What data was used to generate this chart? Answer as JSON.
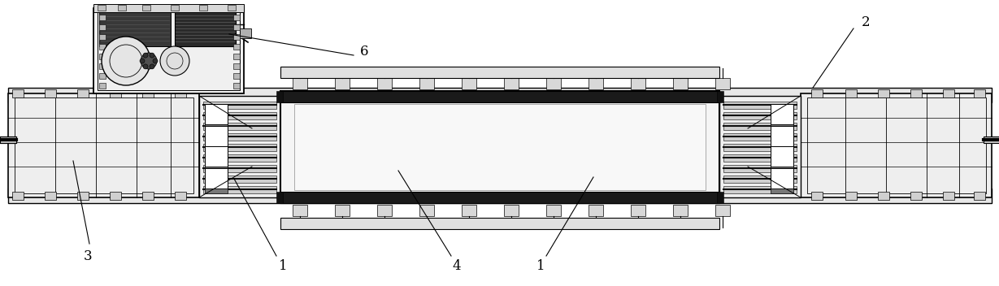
{
  "bg_color": "#ffffff",
  "line_color": "#000000",
  "dark_color": "#111111",
  "fig_width": 12.29,
  "fig_height": 3.52,
  "dpi": 100
}
